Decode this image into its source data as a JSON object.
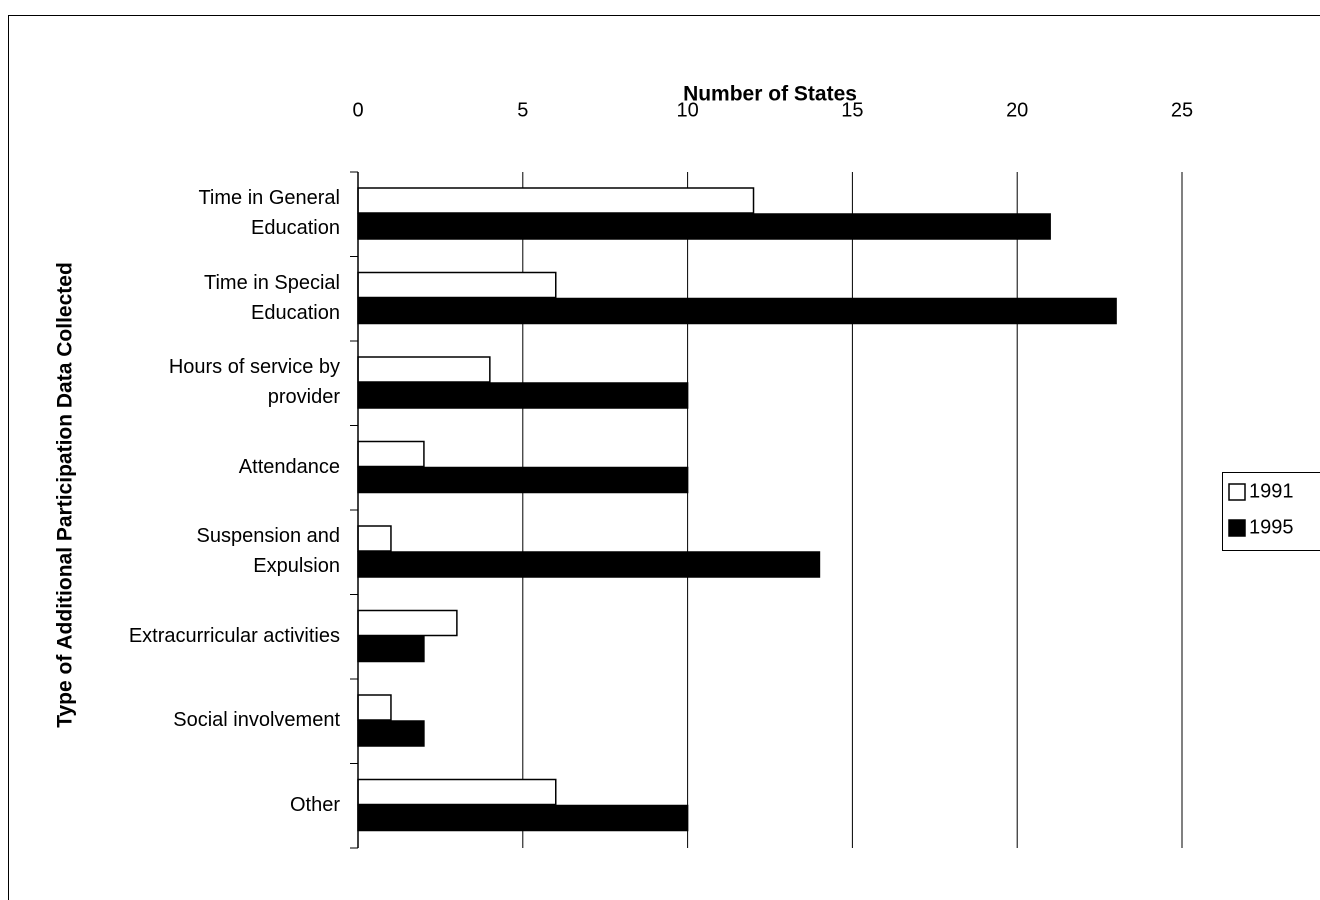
{
  "chart_data": {
    "type": "bar",
    "orientation": "horizontal",
    "x_label": "Number of States",
    "y_label": "Type of Additional Participation Data Collected",
    "categories": [
      "Time in General\nEducation",
      "Time in Special\nEducation",
      "Hours of service by\nprovider",
      "Attendance",
      "Suspension and\nExpulsion",
      "Extracurricular activities",
      "Social involvement",
      "Other"
    ],
    "series": [
      {
        "name": "1991",
        "color": "#ffffff",
        "values": [
          12,
          6,
          4,
          2,
          1,
          3,
          1,
          6
        ]
      },
      {
        "name": "1995",
        "color": "#000000",
        "values": [
          21,
          23,
          10,
          10,
          14,
          2,
          2,
          10
        ]
      }
    ],
    "xlim": [
      0,
      25
    ],
    "xticks": [
      0,
      5,
      10,
      15,
      20,
      25
    ],
    "grid": true,
    "legend": "right"
  }
}
